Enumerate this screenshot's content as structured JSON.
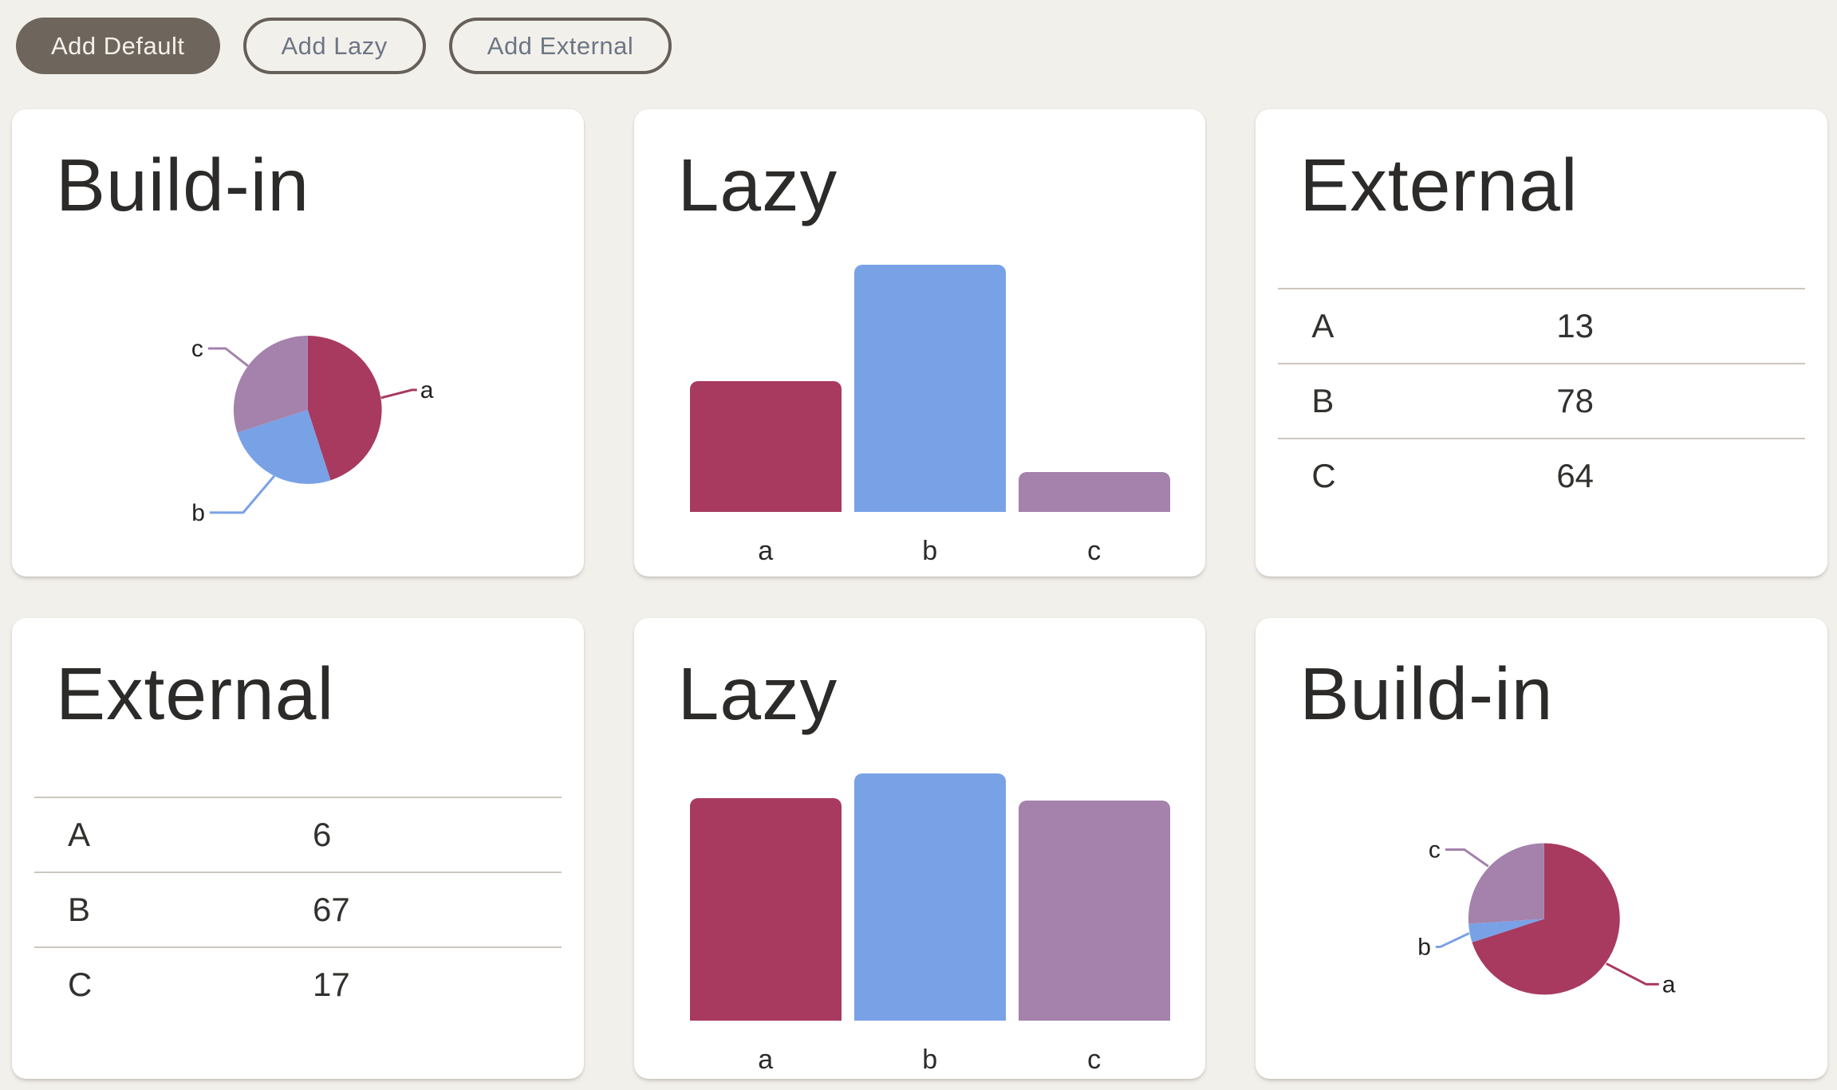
{
  "page": {
    "background_color": "#f2f0eb",
    "card_color": "#ffffff"
  },
  "palette": {
    "series_a": "#a83a5f",
    "series_b": "#79a1e5",
    "series_c": "#a482ac",
    "button_filled_bg": "#6e665c",
    "button_filled_text": "#f4f1ec",
    "button_outline_border": "#666058",
    "button_outline_text": "#6e7685",
    "table_line": "#ccc7bd",
    "title_text": "#2c2b29"
  },
  "toolbar": {
    "buttons": [
      {
        "label": "Add Default",
        "variant": "filled"
      },
      {
        "label": "Add Lazy",
        "variant": "outline"
      },
      {
        "label": "Add External",
        "variant": "outline"
      }
    ]
  },
  "cards": [
    {
      "title": "Build-in",
      "type": "pie",
      "slices": [
        {
          "label": "a",
          "value": 45
        },
        {
          "label": "b",
          "value": 25
        },
        {
          "label": "c",
          "value": 30
        }
      ]
    },
    {
      "title": "Lazy",
      "type": "bar",
      "bars": [
        {
          "label": "a",
          "value": 53
        },
        {
          "label": "b",
          "value": 100
        },
        {
          "label": "c",
          "value": 16
        }
      ]
    },
    {
      "title": "External",
      "type": "table",
      "rows": [
        {
          "label": "A",
          "value": "13"
        },
        {
          "label": "B",
          "value": "78"
        },
        {
          "label": "C",
          "value": "64"
        }
      ]
    },
    {
      "title": "External",
      "type": "table",
      "rows": [
        {
          "label": "A",
          "value": "6"
        },
        {
          "label": "B",
          "value": "67"
        },
        {
          "label": "C",
          "value": "17"
        }
      ]
    },
    {
      "title": "Lazy",
      "type": "bar",
      "bars": [
        {
          "label": "a",
          "value": 90
        },
        {
          "label": "b",
          "value": 100
        },
        {
          "label": "c",
          "value": 89
        }
      ]
    },
    {
      "title": "Build-in",
      "type": "pie",
      "slices": [
        {
          "label": "a",
          "value": 70
        },
        {
          "label": "b",
          "value": 4
        },
        {
          "label": "c",
          "value": 26
        }
      ]
    }
  ],
  "chart_data": [
    {
      "type": "pie",
      "title": "Build-in",
      "labels": [
        "a",
        "b",
        "c"
      ],
      "values_percent": [
        45,
        25,
        30
      ],
      "colors": [
        "#a83a5f",
        "#79a1e5",
        "#a482ac"
      ],
      "legend_position": "outside-leader-lines",
      "position": "row 1, col 1"
    },
    {
      "type": "bar",
      "title": "Lazy",
      "categories": [
        "a",
        "b",
        "c"
      ],
      "values": [
        53,
        100,
        16
      ],
      "colors": [
        "#a83a5f",
        "#79a1e5",
        "#a482ac"
      ],
      "ylim": [
        0,
        100
      ],
      "grid": false,
      "note": "no axes shown; values estimated from relative bar heights",
      "position": "row 1, col 2"
    },
    {
      "type": "table",
      "title": "External",
      "rows": [
        [
          "A",
          13
        ],
        [
          "B",
          78
        ],
        [
          "C",
          64
        ]
      ],
      "position": "row 1, col 3"
    },
    {
      "type": "table",
      "title": "External",
      "rows": [
        [
          "A",
          6
        ],
        [
          "B",
          67
        ],
        [
          "C",
          17
        ]
      ],
      "position": "row 2, col 1"
    },
    {
      "type": "bar",
      "title": "Lazy",
      "categories": [
        "a",
        "b",
        "c"
      ],
      "values": [
        90,
        100,
        89
      ],
      "colors": [
        "#a83a5f",
        "#79a1e5",
        "#a482ac"
      ],
      "ylim": [
        0,
        100
      ],
      "grid": false,
      "note": "no axes shown; values estimated from relative bar heights",
      "position": "row 2, col 2"
    },
    {
      "type": "pie",
      "title": "Build-in",
      "labels": [
        "a",
        "b",
        "c"
      ],
      "values_percent": [
        70,
        4,
        26
      ],
      "colors": [
        "#a83a5f",
        "#79a1e5",
        "#a482ac"
      ],
      "legend_position": "outside-leader-lines",
      "position": "row 2, col 3"
    }
  ]
}
